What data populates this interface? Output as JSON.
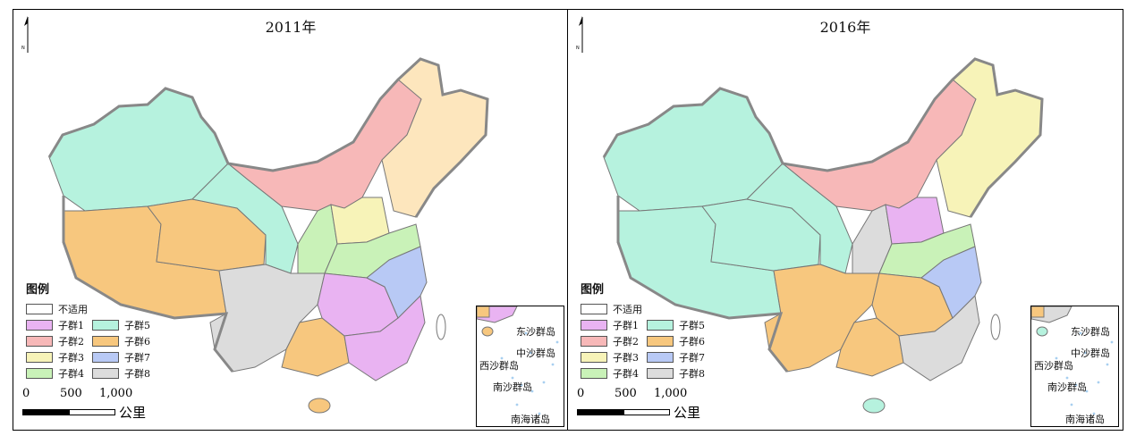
{
  "panels": [
    {
      "id": "left",
      "title": "2011年",
      "north": "N"
    },
    {
      "id": "right",
      "title": "2016年",
      "north": "N"
    }
  ],
  "legend": {
    "title": "图例",
    "na": {
      "label": "不适用",
      "color": "#ffffff"
    },
    "items": [
      {
        "label": "子群1",
        "color": "#e9b3f2"
      },
      {
        "label": "子群5",
        "color": "#b6f2de"
      },
      {
        "label": "子群2",
        "color": "#f7b8b8"
      },
      {
        "label": "子群6",
        "color": "#f7c77e"
      },
      {
        "label": "子群3",
        "color": "#f7f3b8"
      },
      {
        "label": "子群7",
        "color": "#b8c9f5"
      },
      {
        "label": "子群4",
        "color": "#c9f2b8"
      },
      {
        "label": "子群8",
        "color": "#dcdcdc"
      }
    ]
  },
  "scale": {
    "ticks": [
      "0",
      "500",
      "1,000"
    ],
    "unit": "公里"
  },
  "inset_labels": [
    "东沙群岛",
    "中沙群岛",
    "西沙群岛",
    "南沙群岛",
    "南海诸岛"
  ],
  "colors": {
    "border": "#777777",
    "sea": "#a8cff0"
  }
}
